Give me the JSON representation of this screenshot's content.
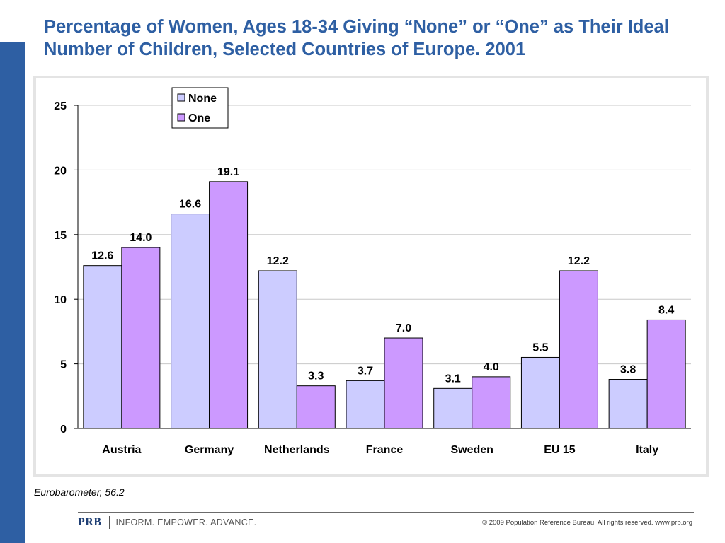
{
  "slide": {
    "title": "Percentage of Women, Ages 18-34 Giving “None” or “One” as Their Ideal Number of Children, Selected Countries of Europe. 2001",
    "source": "Eurobarometer, 56.2",
    "footer_logo": "PRB",
    "footer_tagline": "INFORM. EMPOWER. ADVANCE.",
    "footer_copyright": "© 2009 Population Reference Bureau. All rights reserved. www.prb.org"
  },
  "colors": {
    "title": "#2e5fa3",
    "side_bar": "#2e5fa3",
    "none": "#ccccff",
    "one": "#cc99ff"
  },
  "chart_data": {
    "type": "bar",
    "categories": [
      "Austria",
      "Germany",
      "Netherlands",
      "France",
      "Sweden",
      "EU 15",
      "Italy"
    ],
    "series": [
      {
        "name": "None",
        "values": [
          12.6,
          16.6,
          12.2,
          3.7,
          3.1,
          5.5,
          3.8
        ],
        "labels": [
          "12.6",
          "16.6",
          "12.2",
          "3.7",
          "3.1",
          "5.5",
          "3.8"
        ]
      },
      {
        "name": "One",
        "values": [
          14.0,
          19.1,
          3.3,
          7.0,
          4.0,
          12.2,
          8.4
        ],
        "labels": [
          "14.0",
          "19.1",
          "3.3",
          "7.0",
          "4.0",
          "12.2",
          "8.4"
        ]
      }
    ],
    "ylim": [
      0,
      25
    ],
    "yticks": [
      "0",
      "5",
      "10",
      "15",
      "20",
      "25"
    ],
    "grid": true,
    "legend_position": "top-center",
    "title": "",
    "xlabel": "",
    "ylabel": ""
  }
}
